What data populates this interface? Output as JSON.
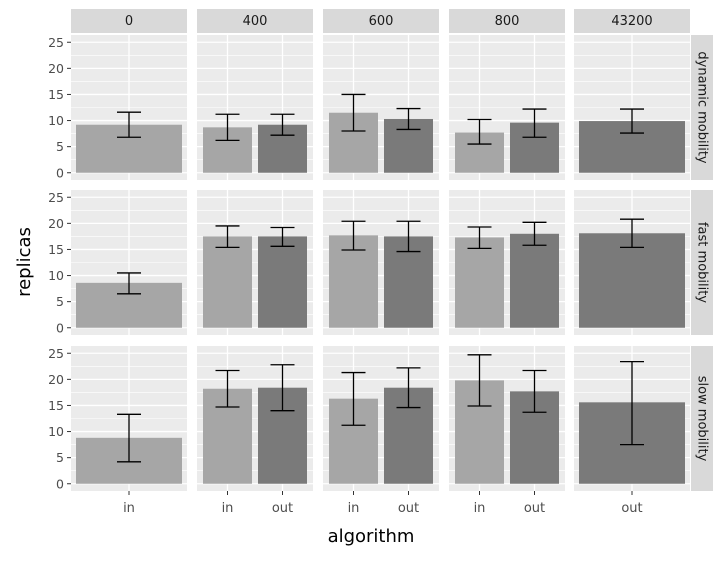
{
  "chart_data": {
    "type": "bar",
    "xlabel": "algorithm",
    "ylabel": "replicas",
    "ylim": [
      0,
      25
    ],
    "yticks": [
      0,
      5,
      10,
      15,
      20,
      25
    ],
    "facet_columns": [
      "0",
      "400",
      "600",
      "800",
      "43200"
    ],
    "facet_rows": [
      "dynamic mobility",
      "fast mobility",
      "slow mobility"
    ],
    "categories": [
      "in",
      "out"
    ],
    "colors": {
      "in": "#a6a6a6",
      "out": "#7a7a7a",
      "panel_bg": "#ebebeb",
      "grid": "#ffffff",
      "strip_bg": "#d9d9d9",
      "errorbar": "#000000",
      "tick_text": "#4d4d4d",
      "axis_title": "#000000"
    },
    "grid": true,
    "panels": [
      {
        "row": "dynamic mobility",
        "column": "0",
        "bars": [
          {
            "x": "in",
            "value": 9.2,
            "err_low": 6.8,
            "err_high": 11.6
          }
        ]
      },
      {
        "row": "dynamic mobility",
        "column": "400",
        "bars": [
          {
            "x": "in",
            "value": 8.7,
            "err_low": 6.2,
            "err_high": 11.2
          },
          {
            "x": "out",
            "value": 9.2,
            "err_low": 7.2,
            "err_high": 11.2
          }
        ]
      },
      {
        "row": "dynamic mobility",
        "column": "600",
        "bars": [
          {
            "x": "in",
            "value": 11.5,
            "err_low": 8.0,
            "err_high": 15.0
          },
          {
            "x": "out",
            "value": 10.3,
            "err_low": 8.3,
            "err_high": 12.3
          }
        ]
      },
      {
        "row": "dynamic mobility",
        "column": "800",
        "bars": [
          {
            "x": "in",
            "value": 7.7,
            "err_low": 5.5,
            "err_high": 10.2
          },
          {
            "x": "out",
            "value": 9.6,
            "err_low": 6.8,
            "err_high": 12.2
          }
        ]
      },
      {
        "row": "dynamic mobility",
        "column": "43200",
        "bars": [
          {
            "x": "out",
            "value": 9.9,
            "err_low": 7.6,
            "err_high": 12.2
          }
        ]
      },
      {
        "row": "fast mobility",
        "column": "0",
        "bars": [
          {
            "x": "in",
            "value": 8.6,
            "err_low": 6.5,
            "err_high": 10.5
          }
        ]
      },
      {
        "row": "fast mobility",
        "column": "400",
        "bars": [
          {
            "x": "in",
            "value": 17.5,
            "err_low": 15.4,
            "err_high": 19.5
          },
          {
            "x": "out",
            "value": 17.5,
            "err_low": 15.6,
            "err_high": 19.2
          }
        ]
      },
      {
        "row": "fast mobility",
        "column": "600",
        "bars": [
          {
            "x": "in",
            "value": 17.7,
            "err_low": 14.9,
            "err_high": 20.4
          },
          {
            "x": "out",
            "value": 17.5,
            "err_low": 14.6,
            "err_high": 20.4
          }
        ]
      },
      {
        "row": "fast mobility",
        "column": "800",
        "bars": [
          {
            "x": "in",
            "value": 17.3,
            "err_low": 15.2,
            "err_high": 19.3
          },
          {
            "x": "out",
            "value": 18.0,
            "err_low": 15.8,
            "err_high": 20.2
          }
        ]
      },
      {
        "row": "fast mobility",
        "column": "43200",
        "bars": [
          {
            "x": "out",
            "value": 18.1,
            "err_low": 15.4,
            "err_high": 20.8
          }
        ]
      },
      {
        "row": "slow mobility",
        "column": "0",
        "bars": [
          {
            "x": "in",
            "value": 8.8,
            "err_low": 4.2,
            "err_high": 13.3
          }
        ]
      },
      {
        "row": "slow mobility",
        "column": "400",
        "bars": [
          {
            "x": "in",
            "value": 18.2,
            "err_low": 14.7,
            "err_high": 21.7
          },
          {
            "x": "out",
            "value": 18.4,
            "err_low": 14.0,
            "err_high": 22.8
          }
        ]
      },
      {
        "row": "slow mobility",
        "column": "600",
        "bars": [
          {
            "x": "in",
            "value": 16.3,
            "err_low": 11.2,
            "err_high": 21.3
          },
          {
            "x": "out",
            "value": 18.4,
            "err_low": 14.6,
            "err_high": 22.2
          }
        ]
      },
      {
        "row": "slow mobility",
        "column": "800",
        "bars": [
          {
            "x": "in",
            "value": 19.8,
            "err_low": 14.9,
            "err_high": 24.7
          },
          {
            "x": "out",
            "value": 17.7,
            "err_low": 13.7,
            "err_high": 21.7
          }
        ]
      },
      {
        "row": "slow mobility",
        "column": "43200",
        "bars": [
          {
            "x": "out",
            "value": 15.6,
            "err_low": 7.5,
            "err_high": 23.4
          }
        ]
      }
    ]
  }
}
